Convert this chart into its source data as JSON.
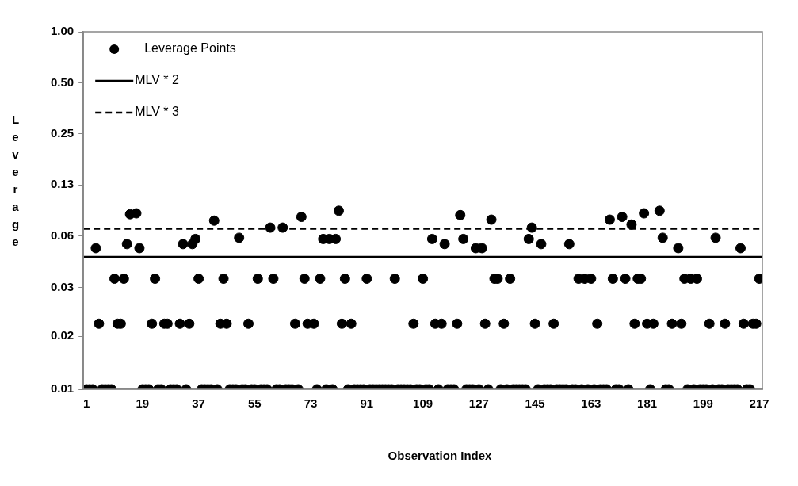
{
  "chart_data": {
    "type": "scatter",
    "xlabel": "Observation Index",
    "ylabel": "Leverage",
    "log": "y",
    "grid": false,
    "legend": "top left",
    "marker": "circle",
    "xlim": [
      0,
      218
    ],
    "xticks": [
      1,
      19,
      37,
      55,
      73,
      91,
      109,
      127,
      145,
      163,
      181,
      199,
      217
    ],
    "ylim": [
      0.0078,
      1
    ],
    "yticks": [
      {
        "value": 0.0078,
        "label": "0.01"
      },
      {
        "value": 0.016,
        "label": "0.02"
      },
      {
        "value": 0.031,
        "label": "0.03"
      },
      {
        "value": 0.0625,
        "label": "0.06"
      },
      {
        "value": 0.125,
        "label": "0.13"
      },
      {
        "value": 0.25,
        "label": "0.25"
      },
      {
        "value": 0.5,
        "label": "0.50"
      },
      {
        "value": 1,
        "label": "1.00"
      }
    ],
    "series": [
      {
        "name": "Leverage Points",
        "color": "#000000",
        "x": [
          4,
          14,
          15,
          17,
          18,
          32,
          35,
          36,
          42,
          50,
          60,
          64,
          70,
          77,
          79,
          81,
          82,
          112,
          116,
          121,
          122,
          126,
          128,
          131,
          143,
          144,
          147,
          156,
          169,
          173,
          176,
          180,
          185,
          186,
          191,
          203,
          211,
          10,
          13,
          23,
          37,
          45,
          56,
          61,
          71,
          76,
          84,
          91,
          100,
          109,
          132,
          133,
          137,
          159,
          161,
          163,
          170,
          174,
          178,
          179,
          193,
          195,
          197,
          217,
          5,
          11,
          12,
          22,
          26,
          27,
          31,
          34,
          44,
          46,
          53,
          68,
          72,
          74,
          83,
          86,
          106,
          113,
          115,
          120,
          129,
          135,
          145,
          151,
          165,
          177,
          181,
          183,
          189,
          192,
          201,
          206,
          212,
          215,
          216,
          1,
          2,
          3,
          6,
          7,
          8,
          9,
          19,
          20,
          21,
          24,
          25,
          28,
          29,
          30,
          33,
          38,
          39,
          40,
          41,
          43,
          47,
          48,
          49,
          51,
          52,
          54,
          55,
          57,
          58,
          59,
          62,
          63,
          65,
          66,
          67,
          69,
          75,
          78,
          80,
          85,
          87,
          88,
          89,
          90,
          92,
          93,
          94,
          95,
          96,
          97,
          98,
          99,
          101,
          102,
          103,
          104,
          105,
          107,
          108,
          110,
          111,
          114,
          117,
          118,
          119,
          123,
          124,
          125,
          127,
          130,
          134,
          136,
          138,
          139,
          140,
          141,
          142,
          146,
          148,
          149,
          150,
          152,
          153,
          154,
          155,
          157,
          158,
          160,
          162,
          164,
          166,
          167,
          168,
          171,
          172,
          175,
          182,
          187,
          188,
          194,
          196,
          198,
          199,
          200,
          202,
          204,
          205,
          207,
          208,
          209,
          210,
          213,
          214
        ],
        "values": [
          0.053,
          0.056,
          0.084,
          0.085,
          0.053,
          0.056,
          0.056,
          0.06,
          0.077,
          0.061,
          0.07,
          0.07,
          0.081,
          0.06,
          0.06,
          0.06,
          0.088,
          0.06,
          0.056,
          0.083,
          0.06,
          0.053,
          0.053,
          0.078,
          0.06,
          0.07,
          0.056,
          0.056,
          0.078,
          0.081,
          0.073,
          0.085,
          0.088,
          0.061,
          0.053,
          0.061,
          0.053,
          0.035,
          0.035,
          0.035,
          0.035,
          0.035,
          0.035,
          0.035,
          0.035,
          0.035,
          0.035,
          0.035,
          0.035,
          0.035,
          0.035,
          0.035,
          0.035,
          0.035,
          0.035,
          0.035,
          0.035,
          0.035,
          0.035,
          0.035,
          0.035,
          0.035,
          0.035,
          0.035,
          0.019,
          0.019,
          0.019,
          0.019,
          0.019,
          0.019,
          0.019,
          0.019,
          0.019,
          0.019,
          0.019,
          0.019,
          0.019,
          0.019,
          0.019,
          0.019,
          0.019,
          0.019,
          0.019,
          0.019,
          0.019,
          0.019,
          0.019,
          0.019,
          0.019,
          0.019,
          0.019,
          0.019,
          0.019,
          0.019,
          0.019,
          0.019,
          0.019,
          0.019,
          0.019,
          0.0078,
          0.0078,
          0.0078,
          0.0078,
          0.0078,
          0.0078,
          0.0078,
          0.0078,
          0.0078,
          0.0078,
          0.0078,
          0.0078,
          0.0078,
          0.0078,
          0.0078,
          0.0078,
          0.0078,
          0.0078,
          0.0078,
          0.0078,
          0.0078,
          0.0078,
          0.0078,
          0.0078,
          0.0078,
          0.0078,
          0.0078,
          0.0078,
          0.0078,
          0.0078,
          0.0078,
          0.0078,
          0.0078,
          0.0078,
          0.0078,
          0.0078,
          0.0078,
          0.0078,
          0.0078,
          0.0078,
          0.0078,
          0.0078,
          0.0078,
          0.0078,
          0.0078,
          0.0078,
          0.0078,
          0.0078,
          0.0078,
          0.0078,
          0.0078,
          0.0078,
          0.0078,
          0.0078,
          0.0078,
          0.0078,
          0.0078,
          0.0078,
          0.0078,
          0.0078,
          0.0078,
          0.0078,
          0.0078,
          0.0078,
          0.0078,
          0.0078,
          0.0078,
          0.0078,
          0.0078,
          0.0078,
          0.0078,
          0.0078,
          0.0078,
          0.0078,
          0.0078,
          0.0078,
          0.0078,
          0.0078,
          0.0078,
          0.0078,
          0.0078,
          0.0078,
          0.0078,
          0.0078,
          0.0078,
          0.0078,
          0.0078,
          0.0078,
          0.0078,
          0.0078,
          0.0078,
          0.0078,
          0.0078,
          0.0078,
          0.0078,
          0.0078,
          0.0078,
          0.0078,
          0.0078,
          0.0078,
          0.0078,
          0.0078,
          0.0078,
          0.0078,
          0.0078,
          0.0078,
          0.0078,
          0.0078,
          0.0078,
          0.0078,
          0.0078,
          0.0078,
          0.0078,
          0.0078
        ]
      }
    ],
    "ref_lines": [
      {
        "axis": "y",
        "value": 0.047,
        "label": "MLV * 2",
        "color": "#000000",
        "line_style": "solid"
      },
      {
        "axis": "y",
        "value": 0.069,
        "label": "MLV * 3",
        "color": "#000000",
        "line_style": "dashed"
      }
    ]
  }
}
